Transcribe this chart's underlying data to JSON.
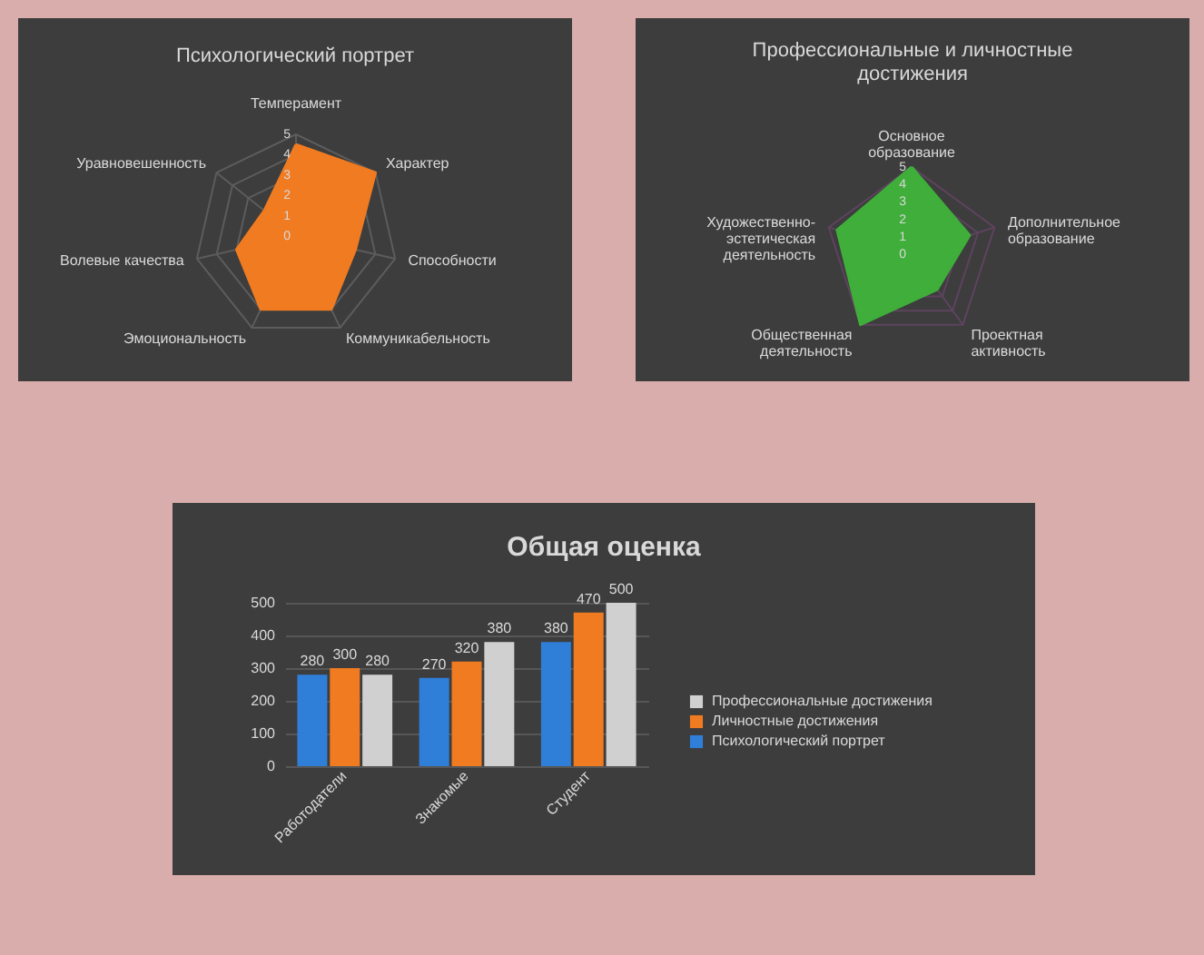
{
  "chart_data": [
    {
      "type": "radar",
      "title": "Психологический портрет",
      "categories": [
        "Темперамент",
        "Характер",
        "Способности",
        "Коммуникабельность",
        "Эмоциональность",
        "Волевые качества",
        "Уравновешенность"
      ],
      "series": [
        {
          "color": "#f07b21",
          "values": [
            4.5,
            5,
            3,
            4,
            4,
            3,
            2
          ]
        }
      ],
      "ylim": [
        0,
        5
      ],
      "yticks": [
        0,
        1,
        2,
        3,
        4,
        5
      ],
      "grid": true
    },
    {
      "type": "radar",
      "title": "Профессиональные и личностные достижения",
      "categories": [
        "Основное образование",
        "Дополнительное образование",
        "Проектная активность",
        "Общественная деятельность",
        "Художественно-эстетическая деятельность"
      ],
      "series": [
        {
          "color": "#3fae3a",
          "values": [
            5,
            3.5,
            2.5,
            5,
            4.5
          ]
        }
      ],
      "ylim": [
        0,
        5
      ],
      "yticks": [
        0,
        1,
        2,
        3,
        4,
        5
      ],
      "grid": true
    },
    {
      "type": "bar",
      "title": "Общая оценка",
      "categories": [
        "Работодатели",
        "Знакомые",
        "Студент"
      ],
      "series": [
        {
          "name": "Психологический портрет",
          "color": "#2f7fd9",
          "values": [
            280,
            270,
            380
          ]
        },
        {
          "name": "Личностные достижения",
          "color": "#f07b21",
          "values": [
            300,
            320,
            470
          ]
        },
        {
          "name": "Профессиональные достижения",
          "color": "#d0d0d0",
          "values": [
            280,
            380,
            500
          ]
        }
      ],
      "ylim": [
        0,
        500
      ],
      "yticks": [
        0,
        100,
        200,
        300,
        400,
        500
      ],
      "grid": "y",
      "data_labels": true,
      "legend": "right"
    }
  ]
}
